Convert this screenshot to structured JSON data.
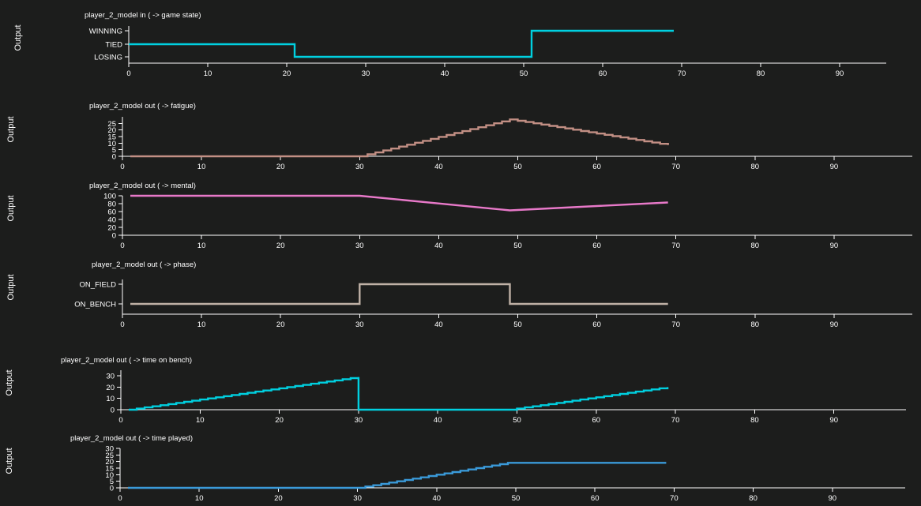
{
  "y_axis_label": "Output",
  "chart_data": [
    {
      "type": "line",
      "step": true,
      "title": "player_2_model in ( -> game state)",
      "ylabel": "Output",
      "color": "#00d0e0",
      "xlim": [
        0,
        96
      ],
      "x_ticks": [
        0,
        10,
        20,
        30,
        40,
        50,
        60,
        70,
        80,
        90
      ],
      "y_categories": [
        "LOSING",
        "TIED",
        "WINNING"
      ],
      "series": [
        {
          "x": [
            0,
            21,
            21,
            51,
            51,
            69
          ],
          "y": [
            "TIED",
            "TIED",
            "LOSING",
            "LOSING",
            "WINNING",
            "WINNING"
          ]
        }
      ]
    },
    {
      "type": "line",
      "step": true,
      "title": "player_2_model out ( -> fatigue)",
      "ylabel": "Output",
      "color": "#c28f84",
      "xlim": [
        0,
        99
      ],
      "ylim": [
        0,
        30
      ],
      "x_ticks": [
        0,
        10,
        20,
        30,
        40,
        50,
        60,
        70,
        80,
        90
      ],
      "y_ticks": [
        0,
        5,
        10,
        15,
        20,
        25
      ],
      "series": [
        {
          "x": [
            1,
            30,
            49,
            69
          ],
          "y": [
            0,
            0,
            28,
            8.5
          ]
        }
      ]
    },
    {
      "type": "line",
      "title": "player_2_model out ( -> mental)",
      "ylabel": "Output",
      "color": "#e879c9",
      "xlim": [
        0,
        99
      ],
      "ylim": [
        0,
        100
      ],
      "x_ticks": [
        0,
        10,
        20,
        30,
        40,
        50,
        60,
        70,
        80,
        90
      ],
      "y_ticks": [
        0,
        20,
        40,
        60,
        80,
        100
      ],
      "series": [
        {
          "x": [
            1,
            30,
            49,
            69
          ],
          "y": [
            100,
            100,
            63,
            83
          ]
        }
      ]
    },
    {
      "type": "line",
      "step": true,
      "title": "player_2_model out ( -> phase)",
      "ylabel": "Output",
      "color": "#bfb1a6",
      "xlim": [
        0,
        99
      ],
      "x_ticks": [
        0,
        10,
        20,
        30,
        40,
        50,
        60,
        70,
        80,
        90
      ],
      "y_categories": [
        "ON_BENCH",
        "ON_FIELD"
      ],
      "series": [
        {
          "x": [
            1,
            30,
            30,
            49,
            49,
            69
          ],
          "y": [
            "ON_BENCH",
            "ON_BENCH",
            "ON_FIELD",
            "ON_FIELD",
            "ON_BENCH",
            "ON_BENCH"
          ]
        }
      ]
    },
    {
      "type": "line",
      "step": true,
      "title": "player_2_model out ( -> time on bench)",
      "ylabel": "Output",
      "color": "#00d0e0",
      "xlim": [
        0,
        99
      ],
      "ylim": [
        0,
        35
      ],
      "x_ticks": [
        0,
        10,
        20,
        30,
        40,
        50,
        60,
        70,
        80,
        90
      ],
      "y_ticks": [
        0,
        10,
        20,
        30
      ],
      "series": [
        {
          "x": [
            1,
            30,
            30,
            49,
            69
          ],
          "y": [
            0,
            29,
            0,
            0,
            20
          ]
        }
      ]
    },
    {
      "type": "line",
      "step": true,
      "title": "player_2_model out ( -> time played)",
      "ylabel": "Output",
      "color": "#3a9ad9",
      "xlim": [
        0,
        99
      ],
      "ylim": [
        0,
        30
      ],
      "x_ticks": [
        0,
        10,
        20,
        30,
        40,
        50,
        60,
        70,
        80,
        90
      ],
      "y_ticks": [
        0,
        5,
        10,
        15,
        20,
        25,
        30
      ],
      "series": [
        {
          "x": [
            1,
            30,
            49,
            69
          ],
          "y": [
            0,
            0,
            19,
            19
          ]
        }
      ]
    }
  ]
}
